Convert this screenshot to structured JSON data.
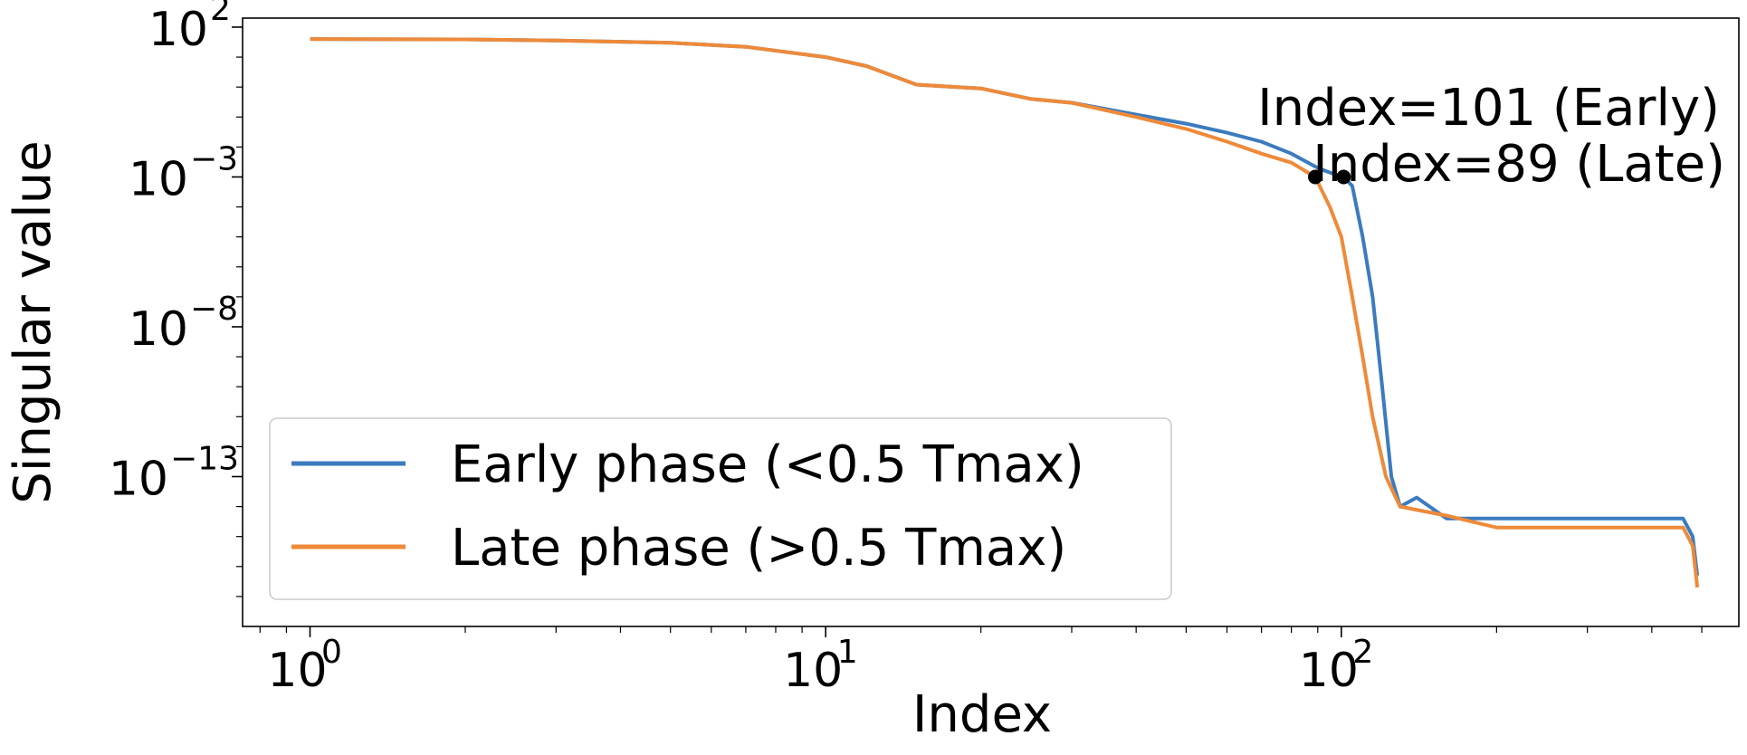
{
  "chart_data": {
    "type": "line",
    "title": "",
    "xlabel": "Index",
    "ylabel": "Singular value",
    "x_scale": "log",
    "y_scale": "log",
    "xlim": [
      0.74,
      590
    ],
    "ylim": [
      1e-18,
      200
    ],
    "x_ticks": [
      {
        "value": 1,
        "base": "10",
        "exp": "0"
      },
      {
        "value": 10,
        "base": "10",
        "exp": "1"
      },
      {
        "value": 100,
        "base": "10",
        "exp": "2"
      }
    ],
    "y_ticks": [
      {
        "value": 100.0,
        "base": "10",
        "exp": "2"
      },
      {
        "value": 0.001,
        "base": "10",
        "exp": "−3"
      },
      {
        "value": 1e-08,
        "base": "10",
        "exp": "−8"
      },
      {
        "value": 1e-13,
        "base": "10",
        "exp": "−13"
      }
    ],
    "grid": false,
    "legend_position": "lower-left",
    "series": [
      {
        "name": "Early phase (<0.5 Tmax)",
        "color": "#3b7bbf",
        "points": [
          [
            1,
            40
          ],
          [
            2,
            39
          ],
          [
            3,
            36
          ],
          [
            5,
            30
          ],
          [
            7,
            22
          ],
          [
            10,
            10
          ],
          [
            12,
            5
          ],
          [
            15,
            1.2
          ],
          [
            20,
            0.9
          ],
          [
            25,
            0.4
          ],
          [
            30,
            0.3
          ],
          [
            40,
            0.12
          ],
          [
            50,
            0.06
          ],
          [
            60,
            0.03
          ],
          [
            70,
            0.015
          ],
          [
            80,
            0.006
          ],
          [
            90,
            0.002
          ],
          [
            95,
            0.0014
          ],
          [
            101,
            0.001
          ],
          [
            105,
            0.0005
          ],
          [
            110,
            1e-05
          ],
          [
            115,
            1e-07
          ],
          [
            120,
            1e-10
          ],
          [
            125,
            1e-13
          ],
          [
            130,
            1e-14
          ],
          [
            140,
            2e-14
          ],
          [
            160,
            4e-15
          ],
          [
            200,
            4e-15
          ],
          [
            300,
            4e-15
          ],
          [
            460,
            4e-15
          ],
          [
            480,
            1e-15
          ],
          [
            490,
            5e-17
          ]
        ]
      },
      {
        "name": "Late phase (>0.5 Tmax)",
        "color": "#ee8a3a",
        "points": [
          [
            1,
            40
          ],
          [
            2,
            39
          ],
          [
            3,
            36
          ],
          [
            5,
            30
          ],
          [
            7,
            22
          ],
          [
            10,
            10
          ],
          [
            12,
            5
          ],
          [
            15,
            1.2
          ],
          [
            20,
            0.9
          ],
          [
            25,
            0.4
          ],
          [
            30,
            0.3
          ],
          [
            40,
            0.1
          ],
          [
            50,
            0.04
          ],
          [
            60,
            0.015
          ],
          [
            70,
            0.006
          ],
          [
            80,
            0.003
          ],
          [
            89,
            0.001
          ],
          [
            95,
            0.0001
          ],
          [
            100,
            1e-05
          ],
          [
            105,
            1e-07
          ],
          [
            110,
            1e-09
          ],
          [
            115,
            1e-11
          ],
          [
            122,
            1e-13
          ],
          [
            130,
            1e-14
          ],
          [
            160,
            5e-15
          ],
          [
            200,
            2e-15
          ],
          [
            300,
            2e-15
          ],
          [
            460,
            2e-15
          ],
          [
            480,
            5e-16
          ],
          [
            490,
            2e-17
          ]
        ]
      }
    ],
    "annotations": [
      {
        "x": 101,
        "y": 0.001,
        "text": "Index=101 (Early)"
      },
      {
        "x": 89,
        "y": 0.001,
        "text": "Index=89 (Late)"
      }
    ]
  }
}
